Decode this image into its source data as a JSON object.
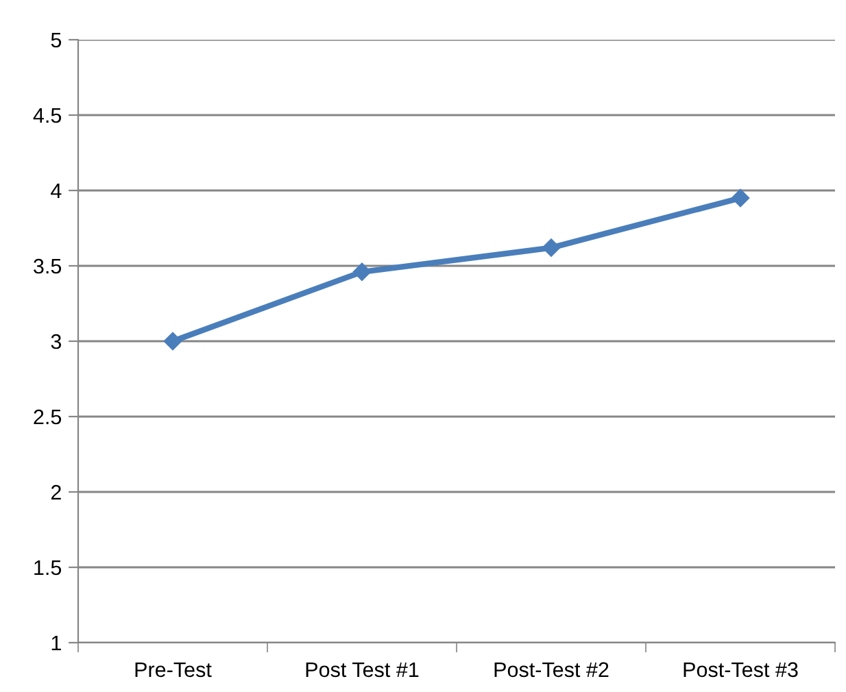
{
  "chart_data": {
    "type": "line",
    "categories": [
      "Pre-Test",
      "Post Test #1",
      "Post-Test #2",
      "Post-Test #3"
    ],
    "series": [
      {
        "color": "#4a7ebb",
        "values": [
          3.0,
          3.46,
          3.62,
          3.95
        ]
      }
    ],
    "ylim": [
      1,
      5
    ],
    "yticks": [
      1,
      1.5,
      2,
      2.5,
      3,
      3.5,
      4,
      4.5,
      5
    ],
    "grid": "y",
    "marker": "diamond",
    "line_style": "solid",
    "legend": false
  }
}
